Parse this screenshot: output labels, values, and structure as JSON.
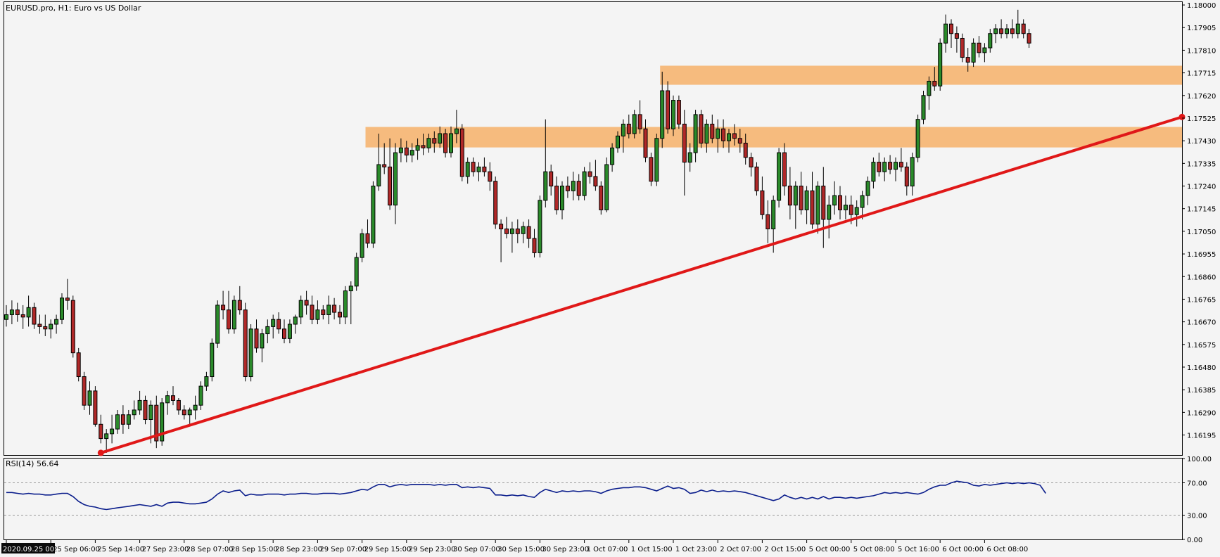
{
  "header": {
    "symbol": "EURUSD.pro",
    "timeframe": "H1",
    "description": "Euro vs US Dollar"
  },
  "chart_data": {
    "type": "candlestick",
    "y_ticks": [
      1.16195,
      1.1629,
      1.16385,
      1.1648,
      1.16575,
      1.1667,
      1.16765,
      1.1686,
      1.16955,
      1.1705,
      1.17145,
      1.1724,
      1.17335,
      1.1743,
      1.17525,
      1.1762,
      1.17715,
      1.1781,
      1.17905,
      1.18
    ],
    "y_tick_labels": [
      "1.16195",
      "1.16290",
      "1.16385",
      "1.16480",
      "1.16575",
      "1.16670",
      "1.16765",
      "1.16860",
      "1.16955",
      "1.17050",
      "1.17145",
      "1.17240",
      "1.17335",
      "1.17430",
      "1.17525",
      "1.17620",
      "1.17715",
      "1.17810",
      "1.17905",
      "1.18000"
    ],
    "ylim": [
      1.16108,
      1.18012
    ],
    "x_labels": [
      "2020.09.25 00:00",
      "25 Sep 06:00",
      "25 Sep 14:00",
      "27 Sep 23:00",
      "28 Sep 07:00",
      "28 Sep 15:00",
      "28 Sep 23:00",
      "29 Sep 07:00",
      "29 Sep 15:00",
      "29 Sep 23:00",
      "30 Sep 07:00",
      "30 Sep 15:00",
      "30 Sep 23:00",
      "1 Oct 07:00",
      "1 Oct 15:00",
      "1 Oct 23:00",
      "2 Oct 07:00",
      "2 Oct 15:00",
      "5 Oct 00:00",
      "5 Oct 08:00",
      "5 Oct 16:00",
      "6 Oct 00:00",
      "6 Oct 08:00"
    ],
    "x_label_bars": [
      0,
      8,
      16,
      24,
      32,
      40,
      48,
      56,
      64,
      72,
      80,
      88,
      96,
      104,
      112,
      120,
      128,
      136,
      144,
      152,
      160,
      168,
      176
    ],
    "candles": [
      [
        1.1668,
        1.1674,
        1.1665,
        1.167
      ],
      [
        1.167,
        1.1676,
        1.1666,
        1.1672
      ],
      [
        1.1672,
        1.1675,
        1.1667,
        1.167
      ],
      [
        1.167,
        1.1674,
        1.1664,
        1.1669
      ],
      [
        1.1669,
        1.1678,
        1.1665,
        1.1673
      ],
      [
        1.1673,
        1.1675,
        1.1664,
        1.1666
      ],
      [
        1.1666,
        1.167,
        1.1662,
        1.1665
      ],
      [
        1.1665,
        1.167,
        1.1661,
        1.1664
      ],
      [
        1.1664,
        1.1668,
        1.166,
        1.1666
      ],
      [
        1.1666,
        1.167,
        1.1662,
        1.1668
      ],
      [
        1.1668,
        1.1679,
        1.1666,
        1.1677
      ],
      [
        1.1677,
        1.1685,
        1.1672,
        1.1676
      ],
      [
        1.1676,
        1.1678,
        1.1652,
        1.1654
      ],
      [
        1.1654,
        1.1656,
        1.1642,
        1.1644
      ],
      [
        1.1644,
        1.1646,
        1.163,
        1.1632
      ],
      [
        1.1632,
        1.1642,
        1.1628,
        1.1638
      ],
      [
        1.1638,
        1.164,
        1.1623,
        1.1624
      ],
      [
        1.1624,
        1.1628,
        1.1616,
        1.1618
      ],
      [
        1.1618,
        1.1622,
        1.1612,
        1.162
      ],
      [
        1.162,
        1.1628,
        1.1616,
        1.1622
      ],
      [
        1.1622,
        1.163,
        1.162,
        1.1628
      ],
      [
        1.1628,
        1.1632,
        1.162,
        1.1624
      ],
      [
        1.1624,
        1.163,
        1.1622,
        1.1628
      ],
      [
        1.1628,
        1.1634,
        1.1626,
        1.163
      ],
      [
        1.163,
        1.1638,
        1.1628,
        1.1634
      ],
      [
        1.1634,
        1.1636,
        1.1624,
        1.1626
      ],
      [
        1.1626,
        1.1634,
        1.1616,
        1.1632
      ],
      [
        1.1632,
        1.1636,
        1.1614,
        1.1617
      ],
      [
        1.1617,
        1.1635,
        1.1615,
        1.1633
      ],
      [
        1.1633,
        1.1638,
        1.1628,
        1.1636
      ],
      [
        1.1636,
        1.164,
        1.1632,
        1.1634
      ],
      [
        1.1634,
        1.1635,
        1.1628,
        1.163
      ],
      [
        1.163,
        1.1632,
        1.1626,
        1.1628
      ],
      [
        1.1628,
        1.1631,
        1.1624,
        1.163
      ],
      [
        1.163,
        1.1636,
        1.1626,
        1.1632
      ],
      [
        1.1632,
        1.1642,
        1.163,
        1.164
      ],
      [
        1.164,
        1.1646,
        1.1638,
        1.1644
      ],
      [
        1.1644,
        1.166,
        1.1642,
        1.1658
      ],
      [
        1.1658,
        1.1676,
        1.1656,
        1.1674
      ],
      [
        1.1674,
        1.168,
        1.1668,
        1.1672
      ],
      [
        1.1672,
        1.168,
        1.1662,
        1.1664
      ],
      [
        1.1664,
        1.1678,
        1.1662,
        1.1676
      ],
      [
        1.1676,
        1.1682,
        1.167,
        1.1672
      ],
      [
        1.1672,
        1.1675,
        1.1642,
        1.1644
      ],
      [
        1.1644,
        1.1666,
        1.1642,
        1.1664
      ],
      [
        1.1664,
        1.1668,
        1.1654,
        1.1656
      ],
      [
        1.1656,
        1.1664,
        1.165,
        1.1662
      ],
      [
        1.1662,
        1.1668,
        1.1658,
        1.1665
      ],
      [
        1.1665,
        1.167,
        1.166,
        1.1668
      ],
      [
        1.1668,
        1.1671,
        1.1662,
        1.1664
      ],
      [
        1.1664,
        1.1668,
        1.1658,
        1.166
      ],
      [
        1.166,
        1.1668,
        1.1658,
        1.1666
      ],
      [
        1.1666,
        1.167,
        1.1662,
        1.1669
      ],
      [
        1.1669,
        1.1678,
        1.1666,
        1.1676
      ],
      [
        1.1676,
        1.168,
        1.167,
        1.1674
      ],
      [
        1.1674,
        1.1678,
        1.1666,
        1.1668
      ],
      [
        1.1668,
        1.1676,
        1.1666,
        1.1672
      ],
      [
        1.1672,
        1.1674,
        1.1668,
        1.167
      ],
      [
        1.167,
        1.1678,
        1.1666,
        1.1674
      ],
      [
        1.1674,
        1.1677,
        1.1668,
        1.1671
      ],
      [
        1.1671,
        1.1674,
        1.1666,
        1.1669
      ],
      [
        1.1669,
        1.1682,
        1.1666,
        1.168
      ],
      [
        1.168,
        1.1684,
        1.1666,
        1.1682
      ],
      [
        1.1682,
        1.1696,
        1.168,
        1.1694
      ],
      [
        1.1694,
        1.1706,
        1.1692,
        1.1704
      ],
      [
        1.1704,
        1.171,
        1.1698,
        1.17
      ],
      [
        1.17,
        1.1726,
        1.1698,
        1.1724
      ],
      [
        1.1724,
        1.1746,
        1.1722,
        1.1733
      ],
      [
        1.1733,
        1.1742,
        1.1729,
        1.1732
      ],
      [
        1.1732,
        1.1744,
        1.1714,
        1.1716
      ],
      [
        1.1716,
        1.1742,
        1.1708,
        1.1738
      ],
      [
        1.1738,
        1.1744,
        1.1734,
        1.174
      ],
      [
        1.174,
        1.1743,
        1.1734,
        1.1737
      ],
      [
        1.1737,
        1.1742,
        1.1734,
        1.1739
      ],
      [
        1.1739,
        1.1744,
        1.1735,
        1.1741
      ],
      [
        1.1741,
        1.1746,
        1.1737,
        1.174
      ],
      [
        1.174,
        1.1746,
        1.1738,
        1.1744
      ],
      [
        1.1744,
        1.1747,
        1.1738,
        1.1742
      ],
      [
        1.1742,
        1.1749,
        1.174,
        1.1746
      ],
      [
        1.1746,
        1.1748,
        1.1736,
        1.1738
      ],
      [
        1.1738,
        1.1749,
        1.1736,
        1.1746
      ],
      [
        1.1746,
        1.1756,
        1.1742,
        1.1748
      ],
      [
        1.1748,
        1.175,
        1.1726,
        1.1728
      ],
      [
        1.1728,
        1.1736,
        1.1725,
        1.1734
      ],
      [
        1.1734,
        1.1736,
        1.1728,
        1.173
      ],
      [
        1.173,
        1.1734,
        1.1726,
        1.1732
      ],
      [
        1.1732,
        1.1736,
        1.1728,
        1.173
      ],
      [
        1.173,
        1.1734,
        1.1722,
        1.1726
      ],
      [
        1.1726,
        1.1728,
        1.1706,
        1.1708
      ],
      [
        1.1708,
        1.171,
        1.1692,
        1.1706
      ],
      [
        1.1706,
        1.1711,
        1.1702,
        1.1704
      ],
      [
        1.1704,
        1.1709,
        1.1696,
        1.1706
      ],
      [
        1.1706,
        1.171,
        1.17,
        1.1704
      ],
      [
        1.1704,
        1.1709,
        1.17,
        1.1707
      ],
      [
        1.1707,
        1.171,
        1.1698,
        1.1702
      ],
      [
        1.1702,
        1.1706,
        1.1694,
        1.1696
      ],
      [
        1.1696,
        1.172,
        1.1694,
        1.1718
      ],
      [
        1.1718,
        1.1752,
        1.1715,
        1.173
      ],
      [
        1.173,
        1.1733,
        1.172,
        1.1724
      ],
      [
        1.1724,
        1.1728,
        1.1712,
        1.1714
      ],
      [
        1.1714,
        1.1726,
        1.171,
        1.1724
      ],
      [
        1.1724,
        1.1728,
        1.1719,
        1.1722
      ],
      [
        1.1722,
        1.173,
        1.1718,
        1.1726
      ],
      [
        1.1726,
        1.1729,
        1.1718,
        1.172
      ],
      [
        1.172,
        1.1732,
        1.1718,
        1.173
      ],
      [
        1.173,
        1.1734,
        1.1725,
        1.1728
      ],
      [
        1.1728,
        1.1735,
        1.1722,
        1.1724
      ],
      [
        1.1724,
        1.1726,
        1.1712,
        1.1714
      ],
      [
        1.1714,
        1.1736,
        1.1713,
        1.1733
      ],
      [
        1.1733,
        1.1742,
        1.173,
        1.174
      ],
      [
        1.174,
        1.1747,
        1.1738,
        1.1745
      ],
      [
        1.1745,
        1.1752,
        1.1738,
        1.175
      ],
      [
        1.175,
        1.1754,
        1.1744,
        1.1746
      ],
      [
        1.1746,
        1.1756,
        1.1744,
        1.1754
      ],
      [
        1.1754,
        1.176,
        1.1746,
        1.1748
      ],
      [
        1.1748,
        1.1752,
        1.1734,
        1.1736
      ],
      [
        1.1736,
        1.1738,
        1.1724,
        1.1726
      ],
      [
        1.1726,
        1.1746,
        1.1724,
        1.1744
      ],
      [
        1.1744,
        1.1772,
        1.174,
        1.1764
      ],
      [
        1.1764,
        1.1768,
        1.1746,
        1.1748
      ],
      [
        1.1748,
        1.1762,
        1.1745,
        1.176
      ],
      [
        1.176,
        1.1762,
        1.1748,
        1.175
      ],
      [
        1.175,
        1.1756,
        1.172,
        1.1734
      ],
      [
        1.1734,
        1.1742,
        1.173,
        1.1738
      ],
      [
        1.1738,
        1.1756,
        1.1734,
        1.1754
      ],
      [
        1.1754,
        1.1756,
        1.174,
        1.1742
      ],
      [
        1.1742,
        1.1752,
        1.1738,
        1.175
      ],
      [
        1.175,
        1.1754,
        1.1742,
        1.1744
      ],
      [
        1.1744,
        1.1752,
        1.1738,
        1.1748
      ],
      [
        1.1748,
        1.1752,
        1.174,
        1.1743
      ],
      [
        1.1743,
        1.1748,
        1.1738,
        1.1746
      ],
      [
        1.1746,
        1.175,
        1.1741,
        1.1744
      ],
      [
        1.1744,
        1.1748,
        1.1738,
        1.1742
      ],
      [
        1.1742,
        1.1746,
        1.1733,
        1.1736
      ],
      [
        1.1736,
        1.1738,
        1.1728,
        1.1732
      ],
      [
        1.1732,
        1.1734,
        1.172,
        1.1722
      ],
      [
        1.1722,
        1.1728,
        1.171,
        1.1712
      ],
      [
        1.1712,
        1.1718,
        1.17,
        1.1706
      ],
      [
        1.1706,
        1.172,
        1.1696,
        1.1718
      ],
      [
        1.1718,
        1.174,
        1.1715,
        1.1738
      ],
      [
        1.1738,
        1.1742,
        1.172,
        1.1724
      ],
      [
        1.1724,
        1.1732,
        1.171,
        1.1716
      ],
      [
        1.1716,
        1.1726,
        1.1706,
        1.1724
      ],
      [
        1.1724,
        1.173,
        1.1712,
        1.1714
      ],
      [
        1.1714,
        1.1724,
        1.1708,
        1.1722
      ],
      [
        1.1722,
        1.173,
        1.1706,
        1.1708
      ],
      [
        1.1708,
        1.1726,
        1.1704,
        1.1724
      ],
      [
        1.1724,
        1.1732,
        1.1698,
        1.171
      ],
      [
        1.171,
        1.172,
        1.1702,
        1.1716
      ],
      [
        1.1716,
        1.1726,
        1.1712,
        1.172
      ],
      [
        1.172,
        1.1724,
        1.171,
        1.1714
      ],
      [
        1.1714,
        1.172,
        1.171,
        1.1716
      ],
      [
        1.1716,
        1.172,
        1.1708,
        1.1712
      ],
      [
        1.1712,
        1.1718,
        1.1707,
        1.1715
      ],
      [
        1.1715,
        1.1722,
        1.171,
        1.172
      ],
      [
        1.172,
        1.1728,
        1.1716,
        1.1726
      ],
      [
        1.1726,
        1.1736,
        1.1723,
        1.1734
      ],
      [
        1.1734,
        1.1738,
        1.1728,
        1.173
      ],
      [
        1.173,
        1.1736,
        1.1726,
        1.1734
      ],
      [
        1.1734,
        1.1737,
        1.1729,
        1.1731
      ],
      [
        1.1731,
        1.1736,
        1.1726,
        1.1734
      ],
      [
        1.1734,
        1.174,
        1.173,
        1.1732
      ],
      [
        1.1732,
        1.1734,
        1.172,
        1.1724
      ],
      [
        1.1724,
        1.1738,
        1.172,
        1.1736
      ],
      [
        1.1736,
        1.1754,
        1.1734,
        1.1752
      ],
      [
        1.1752,
        1.1764,
        1.175,
        1.1762
      ],
      [
        1.1762,
        1.177,
        1.1756,
        1.1768
      ],
      [
        1.1768,
        1.1774,
        1.1764,
        1.1766
      ],
      [
        1.1766,
        1.1786,
        1.1764,
        1.1784
      ],
      [
        1.1784,
        1.1796,
        1.178,
        1.1792
      ],
      [
        1.1792,
        1.1794,
        1.1782,
        1.1788
      ],
      [
        1.1788,
        1.1791,
        1.178,
        1.1786
      ],
      [
        1.1786,
        1.1788,
        1.1776,
        1.1778
      ],
      [
        1.1778,
        1.1782,
        1.1772,
        1.1776
      ],
      [
        1.1776,
        1.1786,
        1.1774,
        1.1784
      ],
      [
        1.1784,
        1.1787,
        1.1778,
        1.178
      ],
      [
        1.178,
        1.1784,
        1.1776,
        1.1782
      ],
      [
        1.1782,
        1.179,
        1.178,
        1.1788
      ],
      [
        1.1788,
        1.1792,
        1.1784,
        1.179
      ],
      [
        1.179,
        1.1794,
        1.1786,
        1.1788
      ],
      [
        1.1788,
        1.1792,
        1.1786,
        1.179
      ],
      [
        1.179,
        1.1794,
        1.1786,
        1.1788
      ],
      [
        1.1788,
        1.1798,
        1.1786,
        1.1792
      ],
      [
        1.1792,
        1.1794,
        1.1786,
        1.1788
      ],
      [
        1.1788,
        1.179,
        1.1782,
        1.1784
      ]
    ],
    "zones": [
      {
        "from_bar": 118,
        "to_bar": 999,
        "low": 1.17665,
        "high": 1.17745
      },
      {
        "from_bar": 65,
        "to_bar": 999,
        "low": 1.17402,
        "high": 1.17488
      }
    ],
    "trendline": {
      "start": {
        "bar": 17,
        "price": 1.1612
      },
      "end": {
        "bar": 999,
        "price": 1.1753
      }
    },
    "indicator": {
      "name": "RSI(14)",
      "value": "56.64",
      "ylim": [
        0,
        100
      ],
      "levels": [
        30,
        70
      ],
      "tick_labels": [
        "100.00",
        "70.00",
        "30.00",
        "0.00"
      ],
      "tick_values": [
        100,
        70,
        30,
        0
      ],
      "values": [
        58,
        58,
        57,
        56,
        57,
        56,
        56,
        55,
        55,
        56,
        57,
        57,
        53,
        47,
        43,
        41,
        40,
        38,
        37,
        38,
        39,
        40,
        41,
        42,
        43,
        42,
        41,
        43,
        41,
        45,
        46,
        46,
        45,
        44,
        44,
        45,
        46,
        50,
        56,
        60,
        58,
        60,
        61,
        54,
        56,
        55,
        55,
        56,
        56,
        56,
        55,
        56,
        56,
        57,
        57,
        56,
        56,
        57,
        57,
        57,
        56,
        57,
        58,
        60,
        62,
        61,
        65,
        68,
        68,
        65,
        67,
        68,
        67,
        68,
        68,
        68,
        68,
        67,
        68,
        67,
        68,
        68,
        64,
        65,
        64,
        65,
        64,
        63,
        55,
        55,
        54,
        55,
        54,
        55,
        53,
        52,
        58,
        62,
        60,
        58,
        60,
        59,
        60,
        59,
        60,
        60,
        59,
        57,
        60,
        62,
        63,
        64,
        64,
        65,
        65,
        64,
        62,
        60,
        63,
        66,
        63,
        64,
        62,
        57,
        58,
        61,
        59,
        61,
        59,
        60,
        59,
        60,
        59,
        58,
        56,
        54,
        52,
        50,
        48,
        50,
        55,
        52,
        50,
        52,
        50,
        52,
        50,
        53,
        50,
        52,
        52,
        51,
        52,
        51,
        52,
        53,
        54,
        56,
        58,
        57,
        58,
        57,
        58,
        57,
        56,
        58,
        62,
        65,
        67,
        67,
        70,
        72,
        71,
        70,
        67,
        66,
        68,
        67,
        68,
        69,
        70,
        69,
        70,
        69,
        70,
        69,
        67,
        57
      ]
    }
  }
}
